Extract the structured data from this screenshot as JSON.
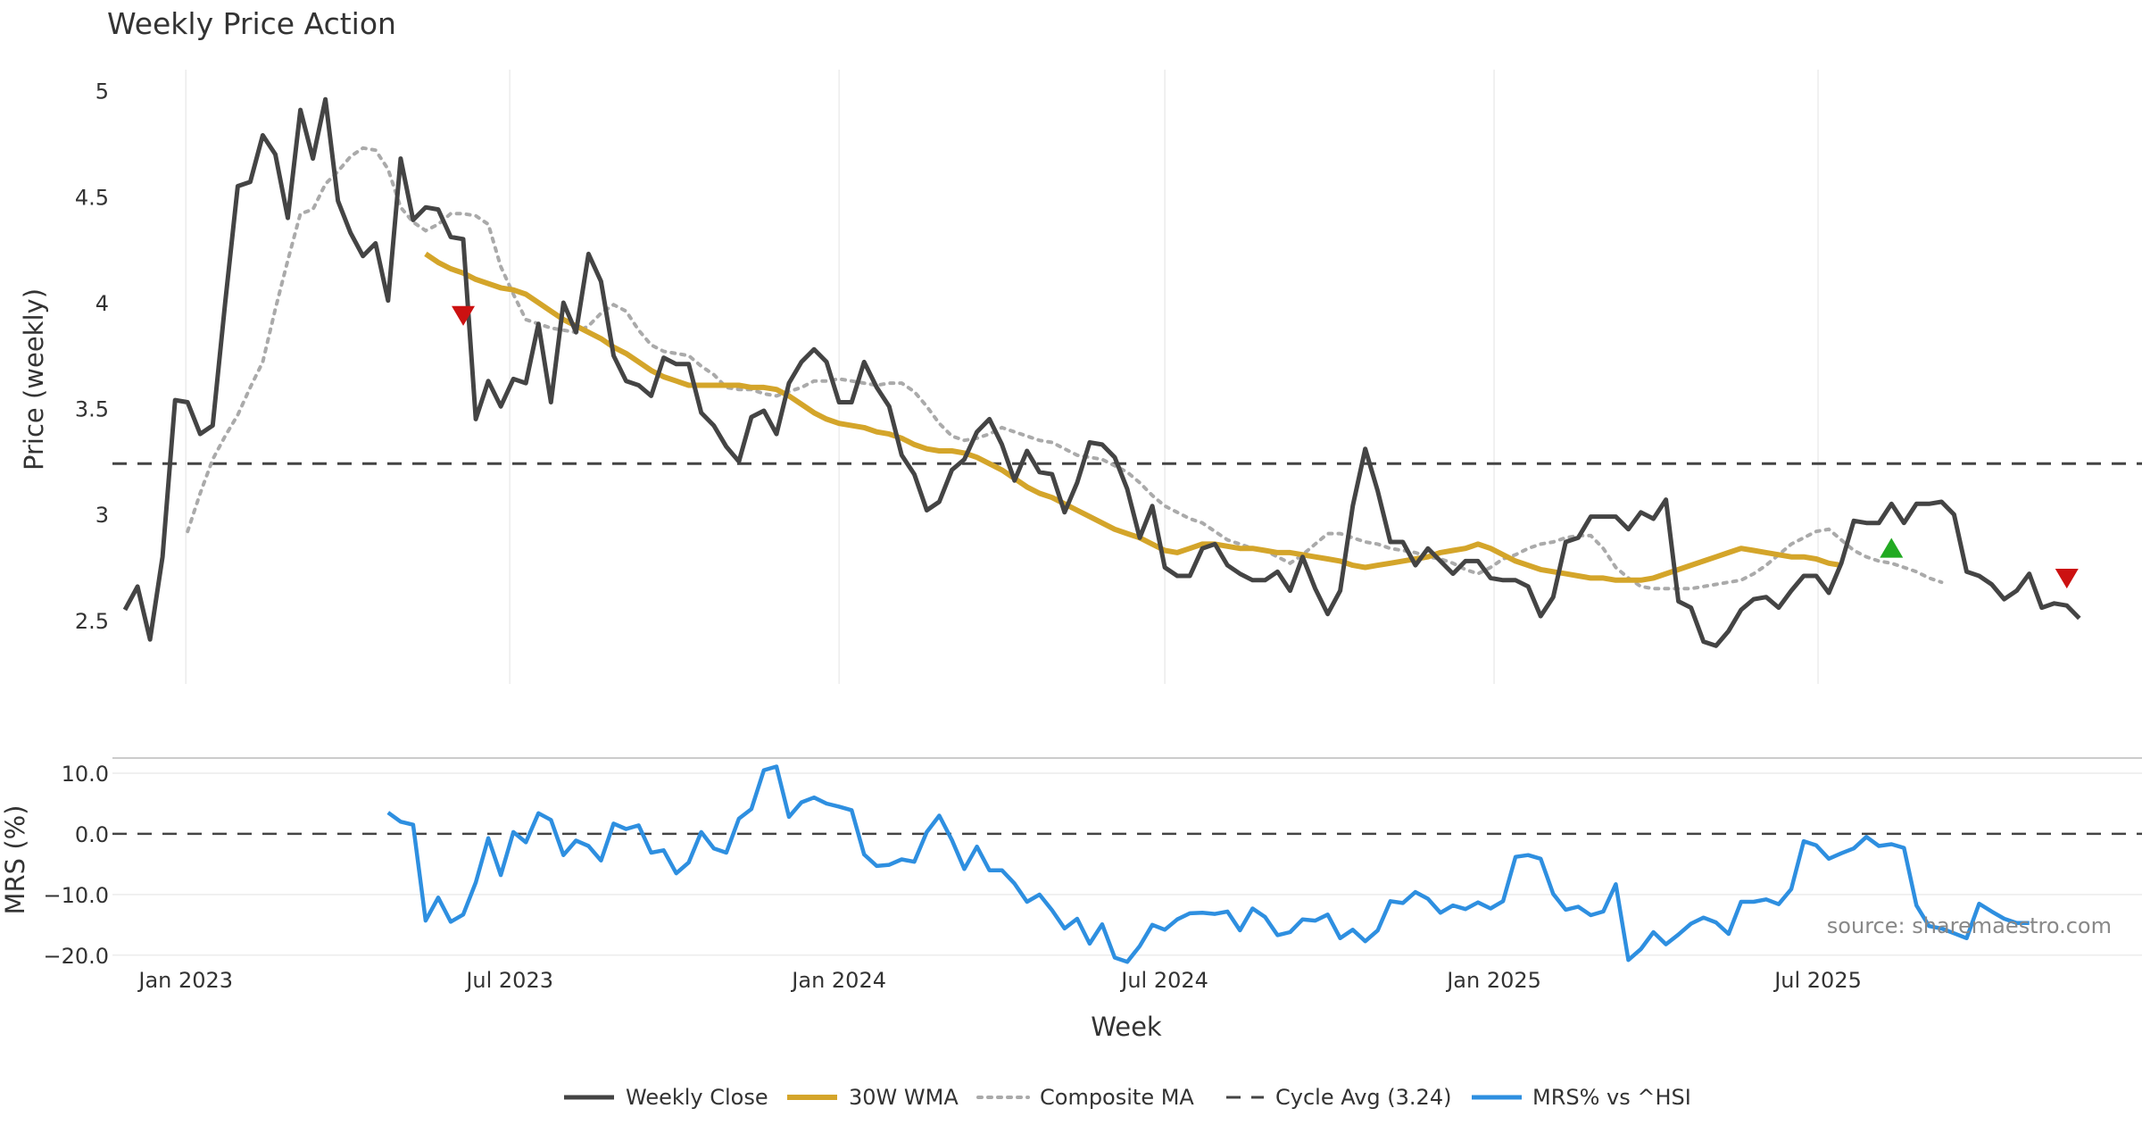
{
  "chart_data": {
    "type": "line",
    "title": "Weekly Price Action",
    "xlabel": "Week",
    "x_ticks": [
      "Jan 2023",
      "Jul 2023",
      "Jan 2024",
      "Jul 2024",
      "Jan 2025",
      "Jul 2025"
    ],
    "x_range": [
      "2022-11-21",
      "2025-12-29"
    ],
    "source_note": "source: sharemaestro.com",
    "price_panel": {
      "ylabel": "Price (weekly)",
      "ylim": [
        2.2,
        5.1
      ],
      "y_ticks": [
        "5",
        "4.5",
        "4",
        "3.5",
        "3",
        "2.5"
      ],
      "y_tick_values": [
        5,
        4.5,
        4,
        3.5,
        3,
        2.5
      ],
      "cycle_avg": 3.24,
      "series": [
        {
          "name": "Weekly Close",
          "color": "#444444",
          "start": "2022-11-28",
          "values": [
            2.55,
            2.66,
            2.41,
            2.8,
            3.54,
            3.53,
            3.38,
            3.42,
            4.0,
            4.55,
            4.57,
            4.79,
            4.7,
            4.4,
            4.91,
            4.68,
            4.96,
            4.48,
            4.33,
            4.22,
            4.28,
            4.01,
            4.68,
            4.39,
            4.45,
            4.44,
            4.31,
            4.3,
            3.45,
            3.63,
            3.51,
            3.64,
            3.62,
            3.9,
            3.53,
            4.0,
            3.86,
            4.23,
            4.1,
            3.75,
            3.63,
            3.61,
            3.56,
            3.74,
            3.71,
            3.71,
            3.48,
            3.42,
            3.32,
            3.25,
            3.46,
            3.49,
            3.38,
            3.62,
            3.72,
            3.78,
            3.72,
            3.53,
            3.53,
            3.72,
            3.6,
            3.51,
            3.28,
            3.19,
            3.02,
            3.06,
            3.21,
            3.26,
            3.39,
            3.45,
            3.33,
            3.16,
            3.3,
            3.2,
            3.19,
            3.01,
            3.15,
            3.34,
            3.33,
            3.27,
            3.12,
            2.89,
            3.04,
            2.75,
            2.71,
            2.71,
            2.84,
            2.86,
            2.76,
            2.72,
            2.69,
            2.69,
            2.73,
            2.64,
            2.8,
            2.65,
            2.53,
            2.64,
            3.04,
            3.31,
            3.11,
            2.87,
            2.87,
            2.76,
            2.84,
            2.78,
            2.72,
            2.78,
            2.78,
            2.7,
            2.69,
            2.69,
            2.66,
            2.52,
            2.61,
            2.87,
            2.89,
            2.99,
            2.99,
            2.99,
            2.93,
            3.01,
            2.98,
            3.07,
            2.59,
            2.56,
            2.4,
            2.38,
            2.45,
            2.55,
            2.6,
            2.61,
            2.56,
            2.64,
            2.71,
            2.71,
            2.63,
            2.77,
            2.97,
            2.96,
            2.96,
            3.05,
            2.96,
            3.05,
            3.05,
            3.06,
            3.0,
            2.73,
            2.71,
            2.67,
            2.6,
            2.64,
            2.72,
            2.56,
            2.58,
            2.57,
            2.51
          ]
        },
        {
          "name": "30W WMA",
          "color": "#d4a52a",
          "start": "2023-05-15",
          "values": [
            4.23,
            4.19,
            4.16,
            4.14,
            4.11,
            4.09,
            4.07,
            4.06,
            4.04,
            4.0,
            3.96,
            3.92,
            3.89,
            3.86,
            3.83,
            3.79,
            3.76,
            3.72,
            3.68,
            3.65,
            3.63,
            3.61,
            3.61,
            3.61,
            3.61,
            3.61,
            3.6,
            3.6,
            3.59,
            3.56,
            3.52,
            3.48,
            3.45,
            3.43,
            3.42,
            3.41,
            3.39,
            3.38,
            3.36,
            3.33,
            3.31,
            3.3,
            3.3,
            3.29,
            3.27,
            3.24,
            3.21,
            3.17,
            3.13,
            3.1,
            3.08,
            3.05,
            3.02,
            2.99,
            2.96,
            2.93,
            2.91,
            2.89,
            2.86,
            2.83,
            2.82,
            2.84,
            2.86,
            2.86,
            2.85,
            2.84,
            2.84,
            2.83,
            2.82,
            2.82,
            2.81,
            2.8,
            2.79,
            2.78,
            2.76,
            2.75,
            2.76,
            2.77,
            2.78,
            2.79,
            2.8,
            2.82,
            2.83,
            2.84,
            2.86,
            2.84,
            2.81,
            2.78,
            2.76,
            2.74,
            2.73,
            2.72,
            2.71,
            2.7,
            2.7,
            2.69,
            2.69,
            2.69,
            2.7,
            2.72,
            2.74,
            2.76,
            2.78,
            2.8,
            2.82,
            2.84,
            2.83,
            2.82,
            2.81,
            2.8,
            2.8,
            2.79,
            2.77,
            2.76
          ]
        },
        {
          "name": "Composite MA",
          "color": "#aaaaaa",
          "start": "2023-01-02",
          "values": [
            2.92,
            3.1,
            3.26,
            3.37,
            3.47,
            3.6,
            3.72,
            3.97,
            4.2,
            4.42,
            4.44,
            4.56,
            4.62,
            4.69,
            4.73,
            4.72,
            4.63,
            4.45,
            4.38,
            4.34,
            4.37,
            4.42,
            4.42,
            4.41,
            4.37,
            4.17,
            4.04,
            3.92,
            3.9,
            3.88,
            3.87,
            3.86,
            3.89,
            3.95,
            3.99,
            3.96,
            3.87,
            3.8,
            3.77,
            3.76,
            3.75,
            3.7,
            3.66,
            3.6,
            3.59,
            3.59,
            3.57,
            3.56,
            3.58,
            3.6,
            3.63,
            3.63,
            3.64,
            3.63,
            3.62,
            3.61,
            3.62,
            3.62,
            3.58,
            3.51,
            3.43,
            3.37,
            3.35,
            3.36,
            3.38,
            3.41,
            3.39,
            3.37,
            3.35,
            3.34,
            3.31,
            3.28,
            3.27,
            3.26,
            3.23,
            3.2,
            3.15,
            3.09,
            3.04,
            3.01,
            2.98,
            2.96,
            2.92,
            2.88,
            2.86,
            2.84,
            2.83,
            2.8,
            2.77,
            2.81,
            2.86,
            2.91,
            2.91,
            2.89,
            2.87,
            2.86,
            2.84,
            2.83,
            2.82,
            2.8,
            2.79,
            2.77,
            2.74,
            2.72,
            2.75,
            2.79,
            2.81,
            2.84,
            2.86,
            2.87,
            2.89,
            2.9,
            2.9,
            2.84,
            2.75,
            2.7,
            2.66,
            2.65,
            2.65,
            2.65,
            2.65,
            2.66,
            2.67,
            2.68,
            2.69,
            2.72,
            2.76,
            2.81,
            2.86,
            2.89,
            2.92,
            2.93,
            2.88,
            2.83,
            2.8,
            2.78,
            2.77,
            2.75,
            2.73,
            2.7,
            2.68
          ]
        },
        {
          "name": "Cycle Avg (3.24)",
          "color": "#444444",
          "value": 3.24
        }
      ],
      "markers": [
        {
          "type": "sell",
          "date": "2023-06-05",
          "value": 3.94,
          "color": "#cc1111"
        },
        {
          "type": "buy",
          "date": "2025-08-11",
          "value": 2.84,
          "color": "#22aa22"
        },
        {
          "type": "sell",
          "date": "2025-11-17",
          "value": 2.7,
          "color": "#cc1111"
        }
      ]
    },
    "mrs_panel": {
      "ylabel": "MRS (%)",
      "ylim": [
        -21.5,
        12.5
      ],
      "y_ticks": [
        "10.0",
        "0.0",
        "−10.0",
        "−20.0"
      ],
      "y_tick_values": [
        10,
        0,
        -10,
        -20
      ],
      "zero_line": 0,
      "series": [
        {
          "name": "MRS% vs ^HSI",
          "color": "#2e8fe0",
          "start": "2023-04-24",
          "values": [
            3.5,
            2.0,
            1.5,
            -14.3,
            -10.5,
            -14.5,
            -13.3,
            -8,
            -0.7,
            -6.8,
            0.3,
            -1.4,
            3.4,
            2.3,
            -3.5,
            -1.1,
            -2,
            -4.4,
            1.7,
            0.8,
            1.4,
            -3.1,
            -2.7,
            -6.5,
            -4.7,
            0.3,
            -2.4,
            -3.1,
            2.5,
            4.1,
            10.5,
            11.1,
            2.8,
            5.2,
            6.0,
            5.0,
            4.5,
            3.9,
            -3.4,
            -5.3,
            -5.1,
            -4.2,
            -4.6,
            0.3,
            3.0,
            -1.0,
            -5.8,
            -2.1,
            -6.0,
            -6.0,
            -8.2,
            -11.2,
            -10.0,
            -12.6,
            -15.6,
            -14.0,
            -18.1,
            -14.9,
            -20.4,
            -21.1,
            -18.5,
            -15.0,
            -15.8,
            -14.1,
            -13.1,
            -13.0,
            -13.2,
            -12.8,
            -15.9,
            -12.3,
            -13.7,
            -16.7,
            -16.2,
            -14.1,
            -14.3,
            -13.3,
            -17.2,
            -15.8,
            -17.7,
            -15.9,
            -11.1,
            -11.4,
            -9.6,
            -10.7,
            -13.0,
            -11.8,
            -12.4,
            -11.3,
            -12.3,
            -11.1,
            -3.8,
            -3.5,
            -4.1,
            -9.9,
            -12.5,
            -12.0,
            -13.4,
            -12.8,
            -8.3,
            -20.8,
            -19.0,
            -16.2,
            -18.2,
            -16.6,
            -14.8,
            -13.8,
            -14.6,
            -16.5,
            -11.2,
            -11.2,
            -10.8,
            -11.6,
            -9.1,
            -1.2,
            -1.9,
            -4.1,
            -3.2,
            -2.4,
            -0.5,
            -2.0,
            -1.7,
            -2.3,
            -11.8,
            -15.2,
            -15.6,
            -16.4,
            -17.2,
            -11.5,
            -12.8,
            -14.0,
            -14.7,
            -14.7
          ]
        }
      ]
    },
    "legend": {
      "position": "bottom",
      "entries": [
        "Weekly Close",
        "30W WMA",
        "Composite MA",
        "Cycle Avg (3.24)",
        "MRS% vs ^HSI"
      ]
    }
  }
}
